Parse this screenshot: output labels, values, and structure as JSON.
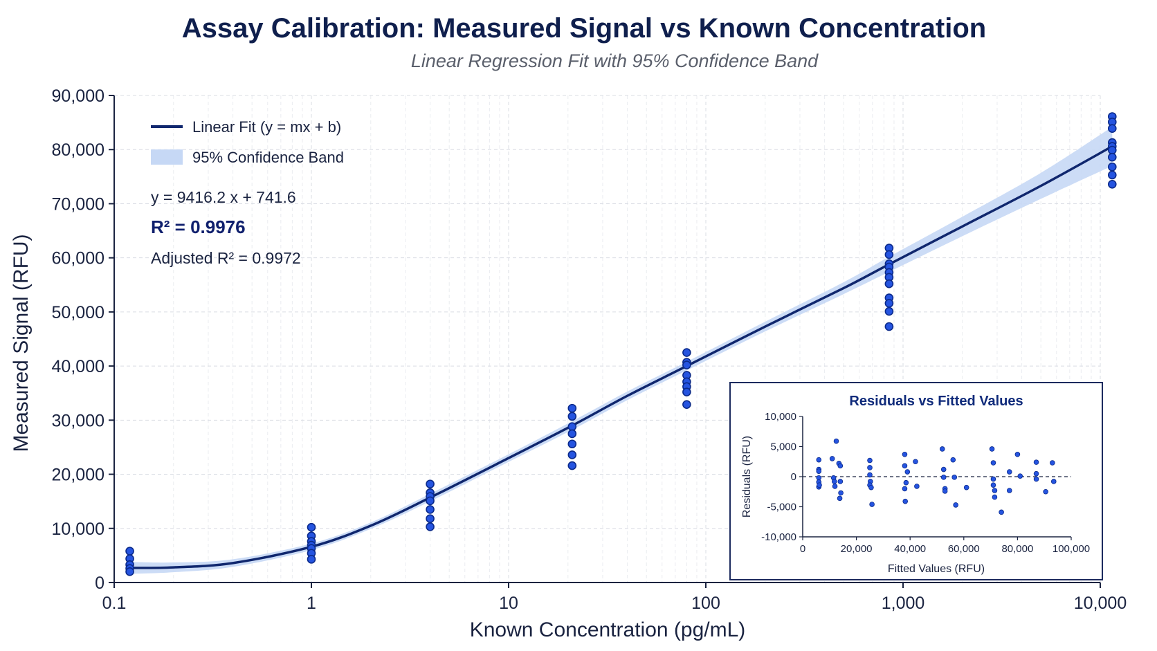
{
  "chart_data": {
    "type": "scatter",
    "title": "Assay Calibration: Measured Signal vs Known Concentration",
    "subtitle": "Linear Regression Fit with 95% Confidence Band",
    "xlabel": "Known Concentration (pg/mL)",
    "ylabel": "Measured Signal (RFU)",
    "x_scale": "log",
    "xlim": [
      0.1,
      10000
    ],
    "ylim": [
      0,
      90000
    ],
    "x_ticks": [
      {
        "value": 0.1,
        "label": "0.1"
      },
      {
        "value": 1,
        "label": "1"
      },
      {
        "value": 10,
        "label": "10"
      },
      {
        "value": 100,
        "label": "100"
      },
      {
        "value": 1000,
        "label": "1,000"
      },
      {
        "value": 10000,
        "label": "10,000"
      }
    ],
    "y_ticks": [
      {
        "value": 0,
        "label": "0"
      },
      {
        "value": 10000,
        "label": "10,000"
      },
      {
        "value": 20000,
        "label": "20,000"
      },
      {
        "value": 30000,
        "label": "30,000"
      },
      {
        "value": 40000,
        "label": "40,000"
      },
      {
        "value": 50000,
        "label": "50,000"
      },
      {
        "value": 60000,
        "label": "60,000"
      },
      {
        "value": 70000,
        "label": "70,000"
      },
      {
        "value": 80000,
        "label": "80,000"
      },
      {
        "value": 90000,
        "label": "90,000"
      }
    ],
    "grid": true,
    "legend": {
      "placement": "top-left",
      "entries": [
        {
          "label": "Linear Fit (y = mx + b)",
          "kind": "line"
        },
        {
          "label": "95% Confidence Band",
          "kind": "band"
        }
      ]
    },
    "annotations": {
      "equation": "y = 9416.2  x  + 741.6",
      "r2": "R² = 0.9976",
      "adj_r2": "Adjusted R² = 0.9972"
    },
    "points": [
      {
        "x": 0.12,
        "y": [
          5800,
          4400,
          3300,
          2600,
          2000
        ]
      },
      {
        "x": 1,
        "y": [
          10200,
          8600,
          7600,
          6900,
          6300,
          5400,
          4300
        ]
      },
      {
        "x": 4,
        "y": [
          18200,
          16600,
          15900,
          15100,
          13500,
          11800,
          10300
        ]
      },
      {
        "x": 21,
        "y": [
          32200,
          30700,
          28800,
          27500,
          25600,
          23600,
          21600
        ]
      },
      {
        "x": 80,
        "y": [
          42500,
          40700,
          40200,
          38300,
          37100,
          36200,
          35200,
          32900
        ]
      },
      {
        "x": 850,
        "y": [
          61800,
          60600,
          58900,
          58300,
          57300,
          56400,
          55200,
          52600,
          51600,
          50100,
          47300
        ]
      },
      {
        "x": 11500,
        "y": [
          86100,
          85100,
          83900,
          81300,
          80600,
          79900,
          78600,
          76800,
          75300,
          73600
        ]
      }
    ],
    "fit_line": {
      "name": "Linear Fit (y = mx + b)",
      "x": [
        0.12,
        0.2,
        0.4,
        1,
        2,
        4,
        10,
        21,
        40,
        80,
        200,
        500,
        850,
        2000,
        5000,
        11500
      ],
      "y": [
        2700,
        2800,
        3600,
        6600,
        10500,
        15700,
        23000,
        29000,
        34500,
        40000,
        47300,
        54400,
        58800,
        65800,
        73300,
        80600
      ]
    },
    "confidence_band": {
      "name": "95% Confidence Band",
      "x": [
        0.12,
        0.2,
        0.4,
        1,
        2,
        4,
        10,
        21,
        40,
        80,
        200,
        500,
        850,
        2000,
        5000,
        11500
      ],
      "lower": [
        1600,
        1900,
        2900,
        6000,
        9900,
        15000,
        22300,
        28200,
        33700,
        39200,
        46400,
        53300,
        57400,
        64000,
        70900,
        77000
      ],
      "upper": [
        3800,
        3700,
        4300,
        7200,
        11100,
        16400,
        23700,
        29800,
        35300,
        40800,
        48200,
        55500,
        60200,
        67600,
        75700,
        84200
      ]
    },
    "inset": {
      "type": "scatter",
      "title": "Residuals vs Fitted Values",
      "xlabel": "Fitted Values (RFU)",
      "ylabel": "Residuals (RFU)",
      "xlim": [
        0,
        100000
      ],
      "ylim": [
        -10000,
        10000
      ],
      "x_ticks": [
        {
          "value": 0,
          "label": "0"
        },
        {
          "value": 20000,
          "label": "20,000"
        },
        {
          "value": 40000,
          "label": "40,000"
        },
        {
          "value": 60000,
          "label": "60,000"
        },
        {
          "value": 80000,
          "label": "80,000"
        },
        {
          "value": 100000,
          "label": "100,000"
        }
      ],
      "y_ticks": [
        {
          "value": -10000,
          "label": "-10,000"
        },
        {
          "value": -5000,
          "label": "-5,000"
        },
        {
          "value": 0,
          "label": "0"
        },
        {
          "value": 5000,
          "label": "5,000"
        },
        {
          "value": 10000,
          "label": "10,000"
        }
      ],
      "zero_line": true,
      "points": [
        [
          6000,
          2800
        ],
        [
          6000,
          1200
        ],
        [
          6000,
          900
        ],
        [
          6000,
          -200
        ],
        [
          6000,
          -900
        ],
        [
          6000,
          -1700
        ],
        [
          6200,
          -1400
        ],
        [
          11000,
          3000
        ],
        [
          11500,
          -200
        ],
        [
          11800,
          -800
        ],
        [
          12000,
          -1600
        ],
        [
          12500,
          5900
        ],
        [
          13500,
          2200
        ],
        [
          14000,
          1800
        ],
        [
          14000,
          -800
        ],
        [
          14200,
          -2700
        ],
        [
          13800,
          -3600
        ],
        [
          25000,
          2700
        ],
        [
          25000,
          1500
        ],
        [
          25000,
          300
        ],
        [
          25200,
          -800
        ],
        [
          25000,
          -1400
        ],
        [
          25500,
          -1800
        ],
        [
          25800,
          -4600
        ],
        [
          38000,
          3700
        ],
        [
          38000,
          1800
        ],
        [
          39000,
          800
        ],
        [
          38500,
          -1000
        ],
        [
          38000,
          -2000
        ],
        [
          38200,
          -4100
        ],
        [
          42000,
          2500
        ],
        [
          42500,
          -1600
        ],
        [
          52000,
          4600
        ],
        [
          52500,
          1200
        ],
        [
          52500,
          -100
        ],
        [
          53000,
          -2000
        ],
        [
          53000,
          -2400
        ],
        [
          56000,
          2800
        ],
        [
          56500,
          -100
        ],
        [
          57000,
          -4700
        ],
        [
          61000,
          -1800
        ],
        [
          70500,
          4600
        ],
        [
          71000,
          2300
        ],
        [
          71000,
          -400
        ],
        [
          71000,
          -1400
        ],
        [
          71500,
          -2300
        ],
        [
          71500,
          -3400
        ],
        [
          74000,
          -5900
        ],
        [
          77000,
          800
        ],
        [
          77000,
          -2300
        ],
        [
          80000,
          3700
        ],
        [
          81000,
          100
        ],
        [
          87000,
          2400
        ],
        [
          87000,
          500
        ],
        [
          87000,
          -400
        ],
        [
          90500,
          -2500
        ],
        [
          93000,
          2300
        ],
        [
          93500,
          -800
        ]
      ]
    }
  },
  "colors": {
    "fit_line": "#10276e",
    "band": "#c6d8f5",
    "point_fill": "#2554e0",
    "point_stroke": "#0b2a8a",
    "inset_border": "#1c2a5e"
  }
}
